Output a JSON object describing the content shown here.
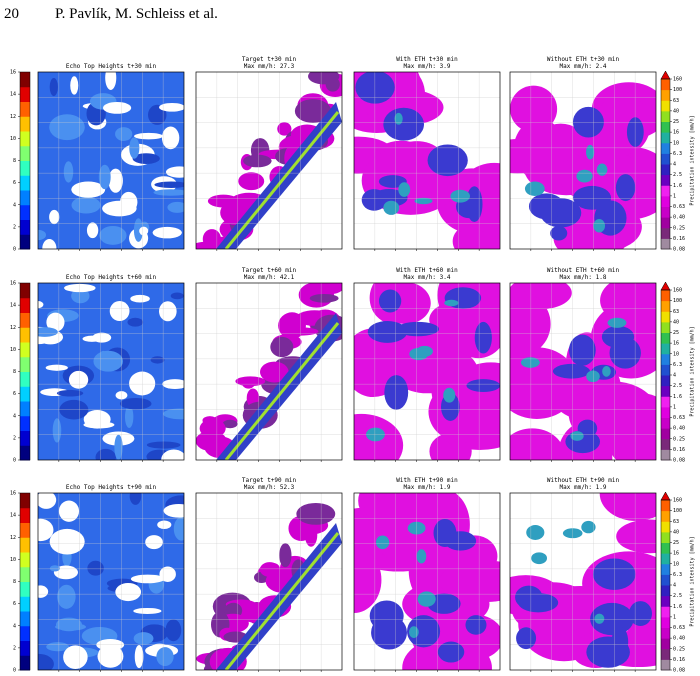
{
  "header": {
    "page_number": "20",
    "authors": "P. Pavlík, M. Schleiss et al."
  },
  "figure": {
    "rows": [
      {
        "panels": [
          {
            "title": [
              "Echo Top Heights t+30 min"
            ]
          },
          {
            "title": [
              "Target t+30 min",
              "Max mm/h: 27.3"
            ]
          },
          {
            "title": [
              "With ETH t+30 min",
              "Max mm/h: 3.9"
            ]
          },
          {
            "title": [
              "Without ETH t+30 min",
              "Max mm/h: 2.4"
            ]
          }
        ]
      },
      {
        "panels": [
          {
            "title": [
              "Echo Top Heights t+60 min"
            ]
          },
          {
            "title": [
              "Target t+60 min",
              "Max mm/h: 42.1"
            ]
          },
          {
            "title": [
              "With ETH t+60 min",
              "Max mm/h: 3.4"
            ]
          },
          {
            "title": [
              "Without ETH t+60 min",
              "Max mm/h: 1.8"
            ]
          }
        ]
      },
      {
        "panels": [
          {
            "title": [
              "Echo Top Heights t+90 min"
            ]
          },
          {
            "title": [
              "Target t+90 min",
              "Max mm/h: 52.3"
            ]
          },
          {
            "title": [
              "With ETH t+90 min",
              "Max mm/h: 1.9"
            ]
          },
          {
            "title": [
              "Without ETH t+90 min",
              "Max mm/h: 1.9"
            ]
          }
        ]
      }
    ],
    "eth_colorbar": {
      "ticks": [
        "0",
        "2",
        "4",
        "6",
        "8",
        "10",
        "12",
        "14",
        "16"
      ]
    },
    "precip_colorbar": {
      "label": "Precipitation intensity [mm/h]",
      "ticks": [
        "0.08",
        "0.16",
        "0.25",
        "0.40",
        "0.63",
        "1",
        "1.6",
        "2.5",
        "4",
        "6.3",
        "10",
        "16",
        "25",
        "40",
        "63",
        "100",
        "160"
      ]
    }
  }
}
